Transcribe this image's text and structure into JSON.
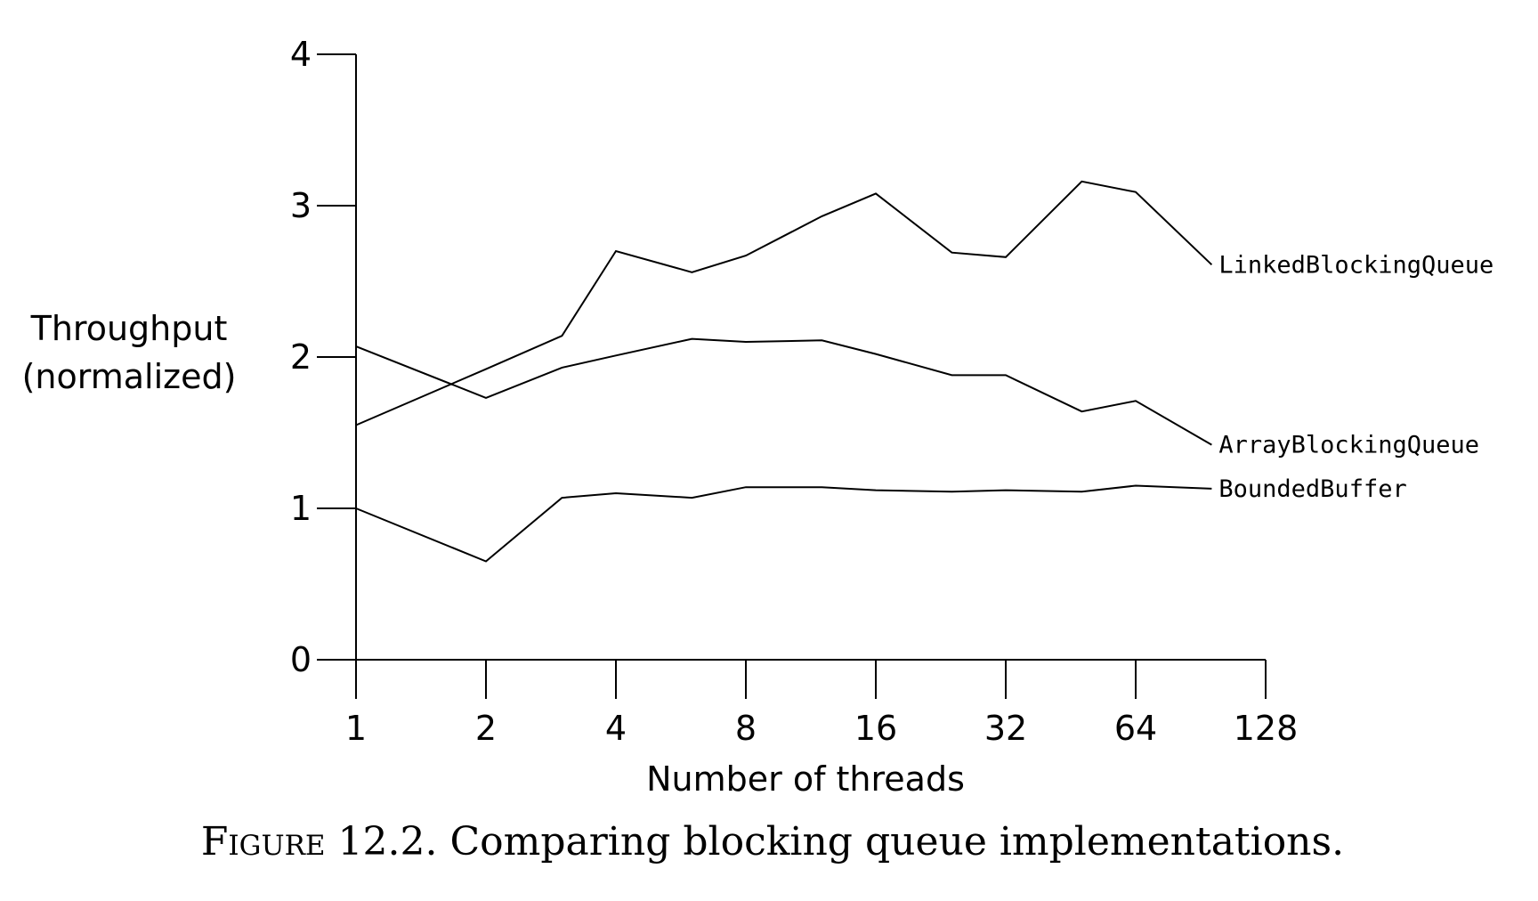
{
  "chart_data": {
    "type": "line",
    "title": "",
    "xlabel": "Number of threads",
    "ylabel": [
      "Throughput",
      "(normalized)"
    ],
    "x_scale": "log2",
    "x_ticks": [
      1,
      2,
      4,
      8,
      16,
      32,
      64,
      128
    ],
    "x_tick_labels": [
      "1",
      "2",
      "4",
      "8",
      "16",
      "32",
      "64",
      "128"
    ],
    "y_ticks": [
      0,
      1,
      2,
      3,
      4
    ],
    "y_tick_labels": [
      "0",
      "1",
      "2",
      "3",
      "4"
    ],
    "ylim": [
      0,
      4
    ],
    "xlim": [
      1,
      128
    ],
    "grid": false,
    "legend": "inline labels at line ends",
    "series": [
      {
        "name": "LinkedBlockingQueue",
        "x": [
          1,
          2,
          3,
          4,
          6,
          8,
          12,
          16,
          24,
          32,
          48,
          64,
          96
        ],
        "values": [
          1.55,
          1.92,
          2.14,
          2.7,
          2.56,
          2.67,
          2.93,
          3.08,
          2.69,
          2.66,
          3.16,
          3.09,
          2.61
        ]
      },
      {
        "name": "ArrayBlockingQueue",
        "x": [
          1,
          2,
          3,
          4,
          6,
          8,
          12,
          16,
          24,
          32,
          48,
          64,
          96
        ],
        "values": [
          2.07,
          1.73,
          1.93,
          2.01,
          2.12,
          2.1,
          2.11,
          2.02,
          1.88,
          1.88,
          1.64,
          1.71,
          1.42
        ]
      },
      {
        "name": "BoundedBuffer",
        "x": [
          1,
          2,
          3,
          4,
          6,
          8,
          12,
          16,
          24,
          32,
          48,
          64,
          96
        ],
        "values": [
          1.0,
          0.65,
          1.07,
          1.1,
          1.07,
          1.14,
          1.14,
          1.12,
          1.11,
          1.12,
          1.11,
          1.15,
          1.13
        ]
      }
    ]
  },
  "caption": {
    "lead": "Figure",
    "text": " 12.2. Comparing blocking queue implementations."
  }
}
